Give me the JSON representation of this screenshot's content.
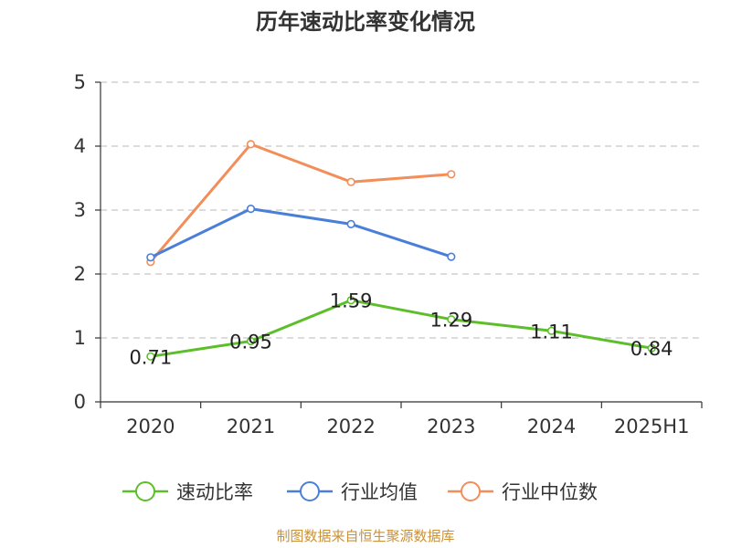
{
  "title": "历年速动比率变化情况",
  "footer": "制图数据来自恒生聚源数据库",
  "chart_data": {
    "type": "line",
    "categories": [
      "2020",
      "2021",
      "2022",
      "2023",
      "2024",
      "2025H1"
    ],
    "ylim": [
      0,
      5
    ],
    "yticks": [
      "0",
      "1",
      "2",
      "3",
      "4",
      "5"
    ],
    "grid": true,
    "legend_position": "bottom",
    "series": [
      {
        "name": "速动比率",
        "color": "#5cbf2a",
        "values": [
          0.71,
          0.95,
          1.59,
          1.29,
          1.11,
          0.84
        ],
        "labels": [
          "0.71",
          "0.95",
          "1.59",
          "1.29",
          "1.11",
          "0.84"
        ]
      },
      {
        "name": "行业均值",
        "color": "#4a7fd9",
        "values": [
          2.26,
          3.02,
          2.78,
          2.27,
          null,
          null
        ]
      },
      {
        "name": "行业中位数",
        "color": "#f28e5a",
        "values": [
          2.19,
          4.03,
          3.44,
          3.56,
          null,
          null
        ]
      }
    ]
  }
}
